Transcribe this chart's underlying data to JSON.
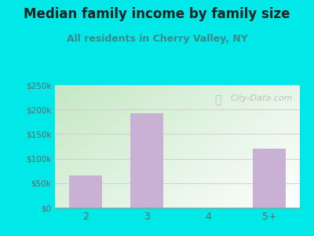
{
  "title": "Median family income by family size",
  "subtitle": "All residents in Cherry Valley, NY",
  "categories": [
    "2",
    "3",
    "4",
    "5+"
  ],
  "values": [
    65000,
    192000,
    0,
    120000
  ],
  "bar_color": "#c9b0d5",
  "outer_bg": "#00e8e8",
  "title_color": "#222222",
  "subtitle_color": "#3a8a8a",
  "tick_label_color": "#666666",
  "ylim": [
    0,
    250000
  ],
  "yticks": [
    0,
    50000,
    100000,
    150000,
    200000,
    250000
  ],
  "ytick_labels": [
    "$0",
    "$50k",
    "$100k",
    "$150k",
    "$200k",
    "$250k"
  ],
  "watermark": "City-Data.com",
  "watermark_color": "#aaaaaa",
  "title_fontsize": 12,
  "subtitle_fontsize": 9
}
